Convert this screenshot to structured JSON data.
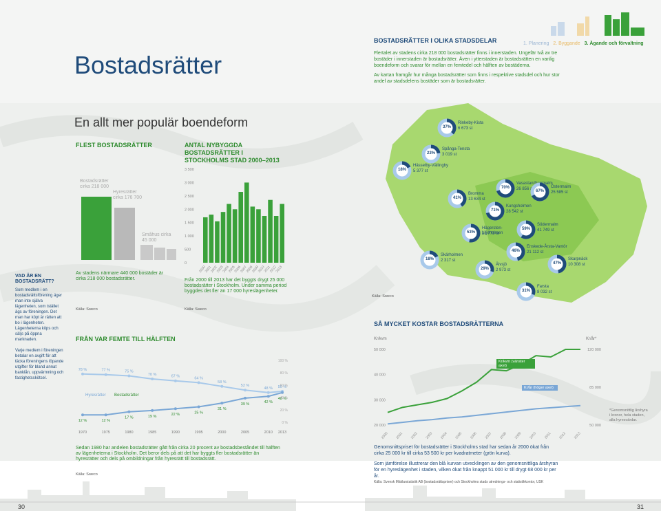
{
  "page_title": "Bostadsrätter",
  "page_numbers": {
    "left": "30",
    "right": "31"
  },
  "top_nav": {
    "item1": "1. Planering",
    "item2": "2. Byggande",
    "item3": "3. Ägande och förvaltning"
  },
  "intro": {
    "heading": "BOSTADSRÄTTER I OLIKA STADSDELAR",
    "para1": "Flertalet av stadens cirka 218 000 bostadsrätter finns i innerstaden. Ungefär två av tre bostäder i innerstaden är bostadsrätter. Även i ytterstaden är bostadsrätten en vanlig boendeform och svarar för mellan en femtedel och hälften av bostäderna.",
    "para2": "Av kartan framgår hur många bostadsrätter som finns i respektive stadsdel och hur stor andel av stadsdelens bostäder som är bostadsrätter."
  },
  "section_title": "En allt mer populär boendeform",
  "flest": {
    "heading": "FLEST BOSTADSRÄTTER",
    "label_br": "Bostadsrätter cirka 218 000",
    "label_hr": "Hyresrätter cirka 176 700",
    "label_sm": "Småhus cirka 45 000",
    "caption": "Av stadens närmare 440 000 bostäder är cirka 218 000 bostadsrätter.",
    "source": "Källa: Sweco"
  },
  "sidebar": {
    "heading": "VAD ÄR EN BOSTADSRÄTT?",
    "para1": "Som medlem i en bostadsrättsförening äger man inte själva lägenheten, som istället ägs av föreningen. Det man har köpt är rätten att bo i lägenheten. Lägenheterna köps och säljs på öppna marknaden.",
    "para2": "Varje medlem i föreningen betalar en avgift för att täcka föreningens löpande utgifter för bland annat banklån, uppvärmning och fastighetsskötsel."
  },
  "nybyggda": {
    "heading": "ANTAL NYBYGGDA BOSTADSRÄTTER I STOCKHOLMS STAD 2000–2013",
    "caption": "Från 2000 till 2013 har det byggts drygt 25 000 bostadsrätter i Stockholm. Under samma period byggdes det fler än 17 000 hyreslägenheter.",
    "source": "Källa: Sweco"
  },
  "femte": {
    "heading": "FRÅN VAR FEMTE TILL HÄLFTEN",
    "legend_hr": "Hyresrätter",
    "legend_br": "Bostadsrätter",
    "caption": "Sedan 1980 har andelen bostadsrätter gått från cirka 20 procent av bostadsbeståndet till hälften av lägenheterna i Stockholm. Det beror dels på att det har byggts fler bostadsrätter än hyresrätter och dels på ombildningar från hyresrätt till bostadsrätt.",
    "source": "Källa: Sweco"
  },
  "map": {
    "source": "Källa: Sweco",
    "districts": [
      {
        "pct": "37%",
        "name": "Rinkeby-Kista",
        "count": "6 673 st"
      },
      {
        "pct": "23%",
        "name": "Spånga-Tensta",
        "count": "3 019 st"
      },
      {
        "pct": "18%",
        "name": "Hässelby-Vällingby",
        "count": "5 377 st"
      },
      {
        "pct": "41%",
        "name": "Bromma",
        "count": "13 634 st"
      },
      {
        "pct": "70%",
        "name": "Vasastan/Norrmalm",
        "count": "26 856 st"
      },
      {
        "pct": "67%",
        "name": "Östermalm",
        "count": "25 585 st"
      },
      {
        "pct": "71%",
        "name": "Kungsholmen",
        "count": "28 542 st"
      },
      {
        "pct": "59%",
        "name": "Södermalm",
        "count": "41 749 st"
      },
      {
        "pct": "53%",
        "name": "Hägersten-Liljeholmen",
        "count": "21 773 st"
      },
      {
        "pct": "46%",
        "name": "Enskede-Årsta-Vantör",
        "count": "21 112 st"
      },
      {
        "pct": "18%",
        "name": "Skärholmen",
        "count": "2 317 st"
      },
      {
        "pct": "29%",
        "name": "Älvsjö",
        "count": "2 973 st"
      },
      {
        "pct": "47%",
        "name": "Skarpnäck",
        "count": "10 308 st"
      },
      {
        "pct": "31%",
        "name": "Farsta",
        "count": "8 032 st"
      }
    ]
  },
  "kostar": {
    "heading": "SÅ MYCKET KOSTAR BOSTADSRÄTTERNA",
    "left_unit": "Kr/kvm",
    "right_unit": "Kr/år*",
    "label_kvm": "Kr/kvm (vänster axel)",
    "label_ar": "Kr/år (höger axel)",
    "footnote": "*Genomsnittlig årshyra i kronor, hela staden, alla hyresvärdar.",
    "para1": "Genomsnittspriset för bostadsrätter i Stockholms stad har sedan år 2000 ökat från cirka 25 000 kr till cirka 53 500 kr per kvadratmeter (grön kurva).",
    "para2": "Som jämförelse illustrerar den blå kurvan utvecklingen av den genomsnittliga årshyran för en hyreslägenhet i staden, vilken ökat från knappt 51 000 kr till drygt 68 000 kr per år.",
    "source": "Källa: Svensk Mäklarstatistik AB (bostadsrättspriser) och Stockholms stads utrednings- och statistikkontor, USK"
  },
  "chart_data": [
    {
      "type": "bar",
      "title": "ANTAL NYBYGGDA BOSTADSRÄTTER I STOCKHOLMS STAD 2000–2013",
      "categories": [
        "2000",
        "2001",
        "2002",
        "2003",
        "2004",
        "2005",
        "2006",
        "2007",
        "2008",
        "2009",
        "2010",
        "2011",
        "2012",
        "2013"
      ],
      "values": [
        1700,
        1800,
        1550,
        1900,
        2200,
        2000,
        2650,
        3000,
        2100,
        2000,
        1750,
        2350,
        1750,
        2200
      ],
      "ylim": [
        0,
        3500
      ],
      "yticks": [
        "0",
        "500",
        "1 000",
        "1 500",
        "2 000",
        "2 500",
        "3 000",
        "3 500"
      ]
    },
    {
      "type": "line",
      "title": "FRÅN VAR FEMTE TILL HÄLFTEN",
      "x": [
        1970,
        1975,
        1980,
        1985,
        1990,
        1995,
        2000,
        2005,
        2010,
        2013
      ],
      "series": [
        {
          "name": "Hyresrätter",
          "values": [
            78,
            77,
            75,
            70,
            67,
            64,
            58,
            52,
            48,
            50
          ]
        },
        {
          "name": "Bostadsrätter",
          "values": [
            12,
            12,
            17,
            19,
            22,
            25,
            31,
            39,
            42,
            48
          ]
        }
      ],
      "labels_hr": [
        "78 %",
        "77 %",
        "75 %",
        "70 %",
        "67 %",
        "64 %",
        "58 %",
        "52 %",
        "48 %",
        "50 %"
      ],
      "labels_br": [
        "12 %",
        "12 %",
        "17 %",
        "19 %",
        "22 %",
        "25 %",
        "31 %",
        "39 %",
        "42 %",
        "48 %"
      ],
      "xticks": [
        "1970",
        "1975",
        "1980",
        "1985",
        "1990",
        "1995",
        "2000",
        "2005",
        "2010",
        "2013"
      ],
      "yticks": [
        "0 %",
        "20 %",
        "40 %",
        "60 %",
        "80 %",
        "100 %"
      ],
      "ylim": [
        0,
        100
      ]
    },
    {
      "type": "line",
      "title": "SÅ MYCKET KOSTAR BOSTADSRÄTTERNA",
      "x": [
        "2000",
        "2001",
        "2002",
        "2003",
        "2004",
        "2005",
        "2006",
        "2007",
        "2008",
        "2009",
        "2010",
        "2011",
        "2012",
        "2013"
      ],
      "series": [
        {
          "name": "Kr/kvm (vänster axel)",
          "values": [
            25000,
            27000,
            28000,
            29000,
            30500,
            33500,
            37000,
            42000,
            41500,
            44000,
            47500,
            47000,
            50000,
            53500
          ]
        },
        {
          "name": "Kr/år (höger axel)",
          "values": [
            51000,
            52500,
            54000,
            55000,
            56500,
            57500,
            59000,
            60500,
            62000,
            63500,
            65000,
            66000,
            67000,
            68000
          ]
        }
      ],
      "left_ylim": [
        20000,
        50000
      ],
      "left_ticks": [
        "20 000",
        "30 000",
        "40 000",
        "50 000"
      ],
      "right_ylim": [
        50000,
        120000
      ],
      "right_ticks": [
        "50 000",
        "85 000",
        "120 000"
      ]
    }
  ]
}
